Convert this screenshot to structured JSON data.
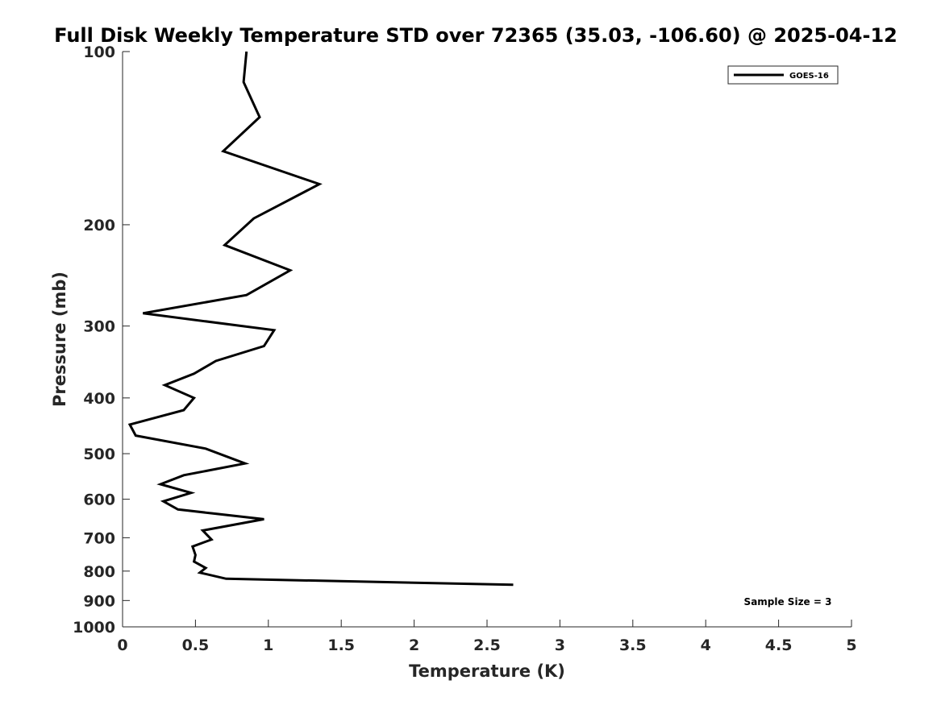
{
  "chart_data": {
    "type": "line",
    "title": "Full Disk Weekly Temperature STD over 72365 (35.03, -106.60) @ 2025-04-12",
    "xlabel": "Temperature (K)",
    "ylabel": "Pressure (mb)",
    "xlim": [
      0,
      5
    ],
    "ylim": [
      100,
      1000
    ],
    "yscale": "log",
    "yreversed": true,
    "xticks": [
      0,
      0.5,
      1,
      1.5,
      2,
      2.5,
      3,
      3.5,
      4,
      4.5,
      5
    ],
    "xtick_labels": [
      "0",
      "0.5",
      "1",
      "1.5",
      "2",
      "2.5",
      "3",
      "3.5",
      "4",
      "4.5",
      "5"
    ],
    "yticks": [
      100,
      200,
      300,
      400,
      500,
      600,
      700,
      800,
      900,
      1000
    ],
    "ytick_labels": [
      "100",
      "200",
      "300",
      "400",
      "500",
      "600",
      "700",
      "800",
      "900",
      "1000"
    ],
    "grid": false,
    "legend_position": "top-right",
    "annotation": "Sample Size = 3",
    "series": [
      {
        "name": "GOES-16",
        "color": "#000000",
        "x": [
          0.85,
          0.83,
          0.94,
          0.69,
          1.35,
          0.9,
          0.7,
          1.15,
          0.85,
          0.14,
          1.04,
          0.97,
          0.64,
          0.49,
          0.29,
          0.49,
          0.42,
          0.05,
          0.09,
          0.57,
          0.84,
          0.42,
          0.26,
          0.47,
          0.28,
          0.38,
          0.97,
          0.55,
          0.61,
          0.48,
          0.5,
          0.49,
          0.57,
          0.53,
          0.71,
          2.68
        ],
        "y": [
          100,
          113,
          130,
          149,
          170,
          195,
          217,
          240,
          265,
          285,
          305,
          325,
          345,
          363,
          380,
          400,
          420,
          445,
          465,
          490,
          520,
          545,
          565,
          585,
          605,
          625,
          650,
          680,
          705,
          725,
          750,
          770,
          790,
          805,
          825,
          845
        ]
      }
    ]
  }
}
